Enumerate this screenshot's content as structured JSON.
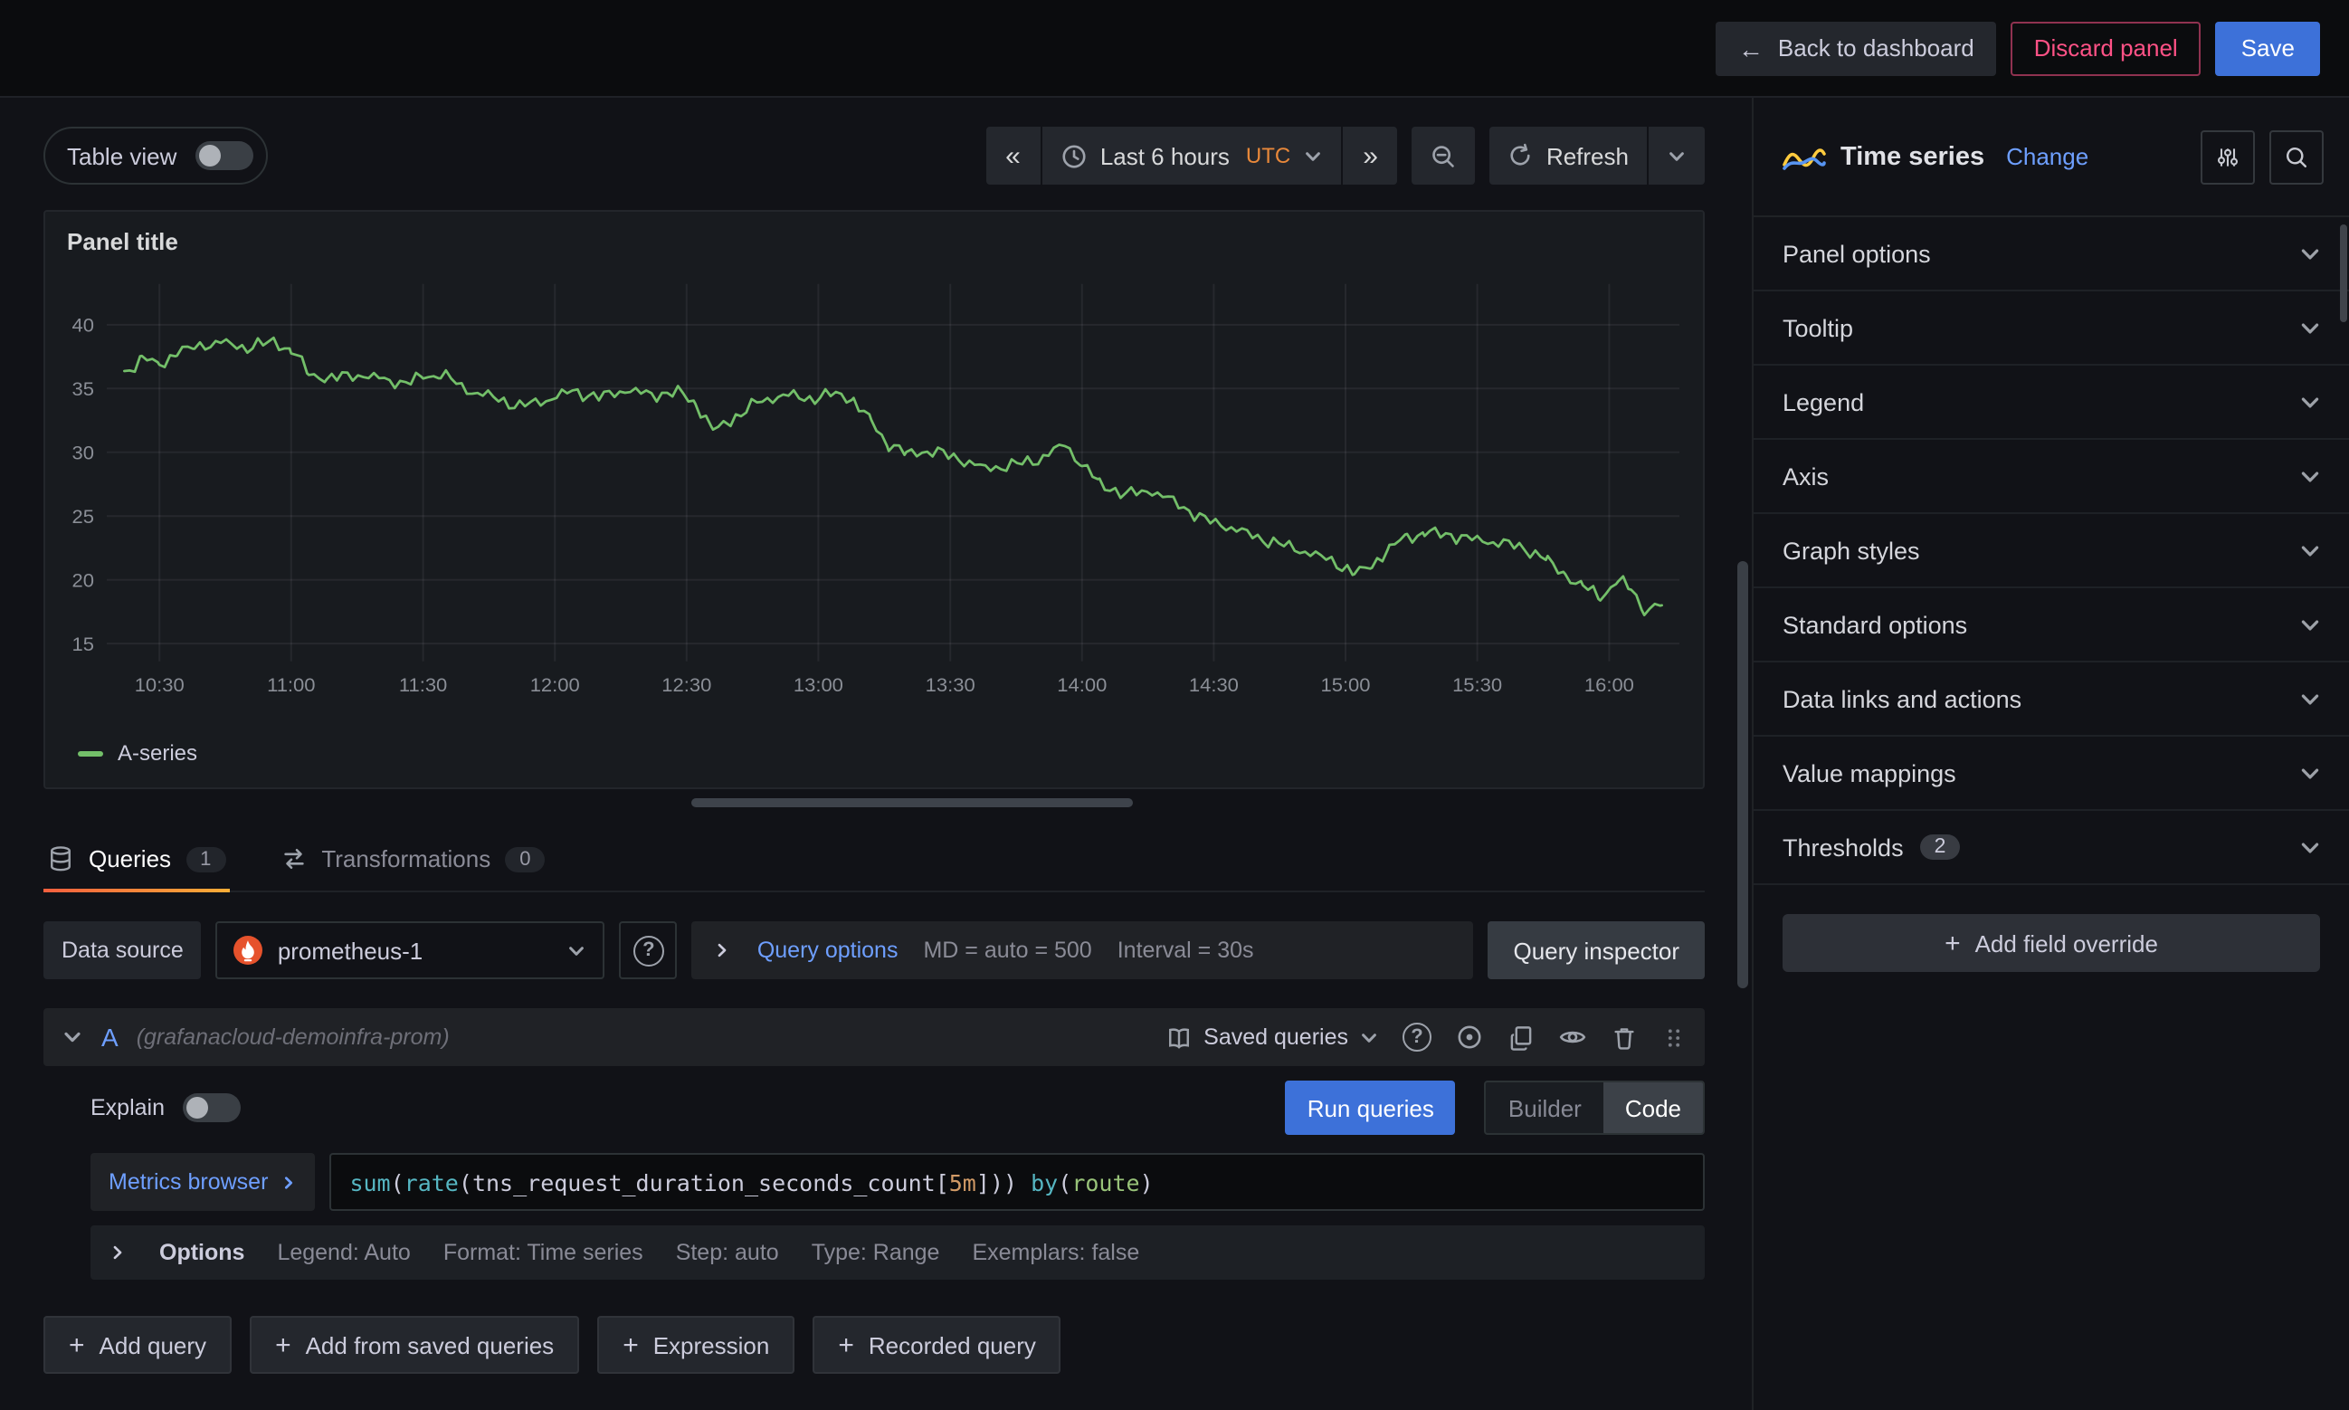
{
  "header": {
    "back_label": "Back to dashboard",
    "discard_label": "Discard panel",
    "save_label": "Save"
  },
  "toolbar": {
    "table_view_label": "Table view",
    "time_range_label": "Last 6 hours",
    "timezone": "UTC",
    "refresh_label": "Refresh"
  },
  "panel": {
    "title": "Panel title",
    "legend_label": "A-series"
  },
  "chart_data": {
    "type": "line",
    "title": "Panel title",
    "xlabel": "",
    "ylabel": "",
    "grid": true,
    "legend_position": "bottom-left",
    "timezone": "UTC",
    "x_ticks": [
      "10:30",
      "11:00",
      "11:30",
      "12:00",
      "12:30",
      "13:00",
      "13:30",
      "14:00",
      "14:30",
      "15:00",
      "15:30",
      "16:00"
    ],
    "y_ticks": [
      15,
      20,
      25,
      30,
      35,
      40
    ],
    "ylim": [
      15,
      40
    ],
    "x_range": [
      "10:18",
      "16:16"
    ],
    "series": [
      {
        "name": "A-series",
        "color": "#73BF69",
        "points": [
          [
            "10:22",
            36.2
          ],
          [
            "10:26",
            37.3
          ],
          [
            "10:30",
            36.9
          ],
          [
            "10:34",
            37.8
          ],
          [
            "10:38",
            38.3
          ],
          [
            "10:44",
            38.6
          ],
          [
            "10:50",
            38.2
          ],
          [
            "10:56",
            38.7
          ],
          [
            "11:00",
            38.0
          ],
          [
            "11:04",
            36.3
          ],
          [
            "11:08",
            35.7
          ],
          [
            "11:14",
            36.1
          ],
          [
            "11:20",
            35.8
          ],
          [
            "11:26",
            35.4
          ],
          [
            "11:30",
            35.9
          ],
          [
            "11:34",
            36.2
          ],
          [
            "11:40",
            34.9
          ],
          [
            "11:46",
            34.3
          ],
          [
            "11:52",
            33.6
          ],
          [
            "11:58",
            34.1
          ],
          [
            "12:04",
            34.8
          ],
          [
            "12:10",
            34.3
          ],
          [
            "12:16",
            34.9
          ],
          [
            "12:22",
            34.5
          ],
          [
            "12:28",
            34.7
          ],
          [
            "12:32",
            33.9
          ],
          [
            "12:36",
            31.7
          ],
          [
            "12:40",
            32.5
          ],
          [
            "12:46",
            33.9
          ],
          [
            "12:52",
            34.5
          ],
          [
            "12:58",
            34.2
          ],
          [
            "13:04",
            34.6
          ],
          [
            "13:08",
            34.1
          ],
          [
            "13:12",
            32.3
          ],
          [
            "13:16",
            30.7
          ],
          [
            "13:20",
            29.9
          ],
          [
            "13:26",
            30.1
          ],
          [
            "13:32",
            29.5
          ],
          [
            "13:38",
            28.7
          ],
          [
            "13:44",
            29.0
          ],
          [
            "13:50",
            29.4
          ],
          [
            "13:56",
            30.6
          ],
          [
            "14:00",
            29.1
          ],
          [
            "14:04",
            27.5
          ],
          [
            "14:10",
            26.7
          ],
          [
            "14:16",
            27.0
          ],
          [
            "14:22",
            25.9
          ],
          [
            "14:28",
            24.7
          ],
          [
            "14:34",
            24.1
          ],
          [
            "14:40",
            23.3
          ],
          [
            "14:46",
            22.7
          ],
          [
            "14:52",
            22.1
          ],
          [
            "14:58",
            21.3
          ],
          [
            "15:02",
            20.5
          ],
          [
            "15:06",
            21.1
          ],
          [
            "15:10",
            22.5
          ],
          [
            "15:14",
            23.3
          ],
          [
            "15:18",
            23.7
          ],
          [
            "15:24",
            23.5
          ],
          [
            "15:30",
            23.1
          ],
          [
            "15:36",
            22.9
          ],
          [
            "15:42",
            22.3
          ],
          [
            "15:46",
            21.5
          ],
          [
            "15:50",
            20.3
          ],
          [
            "15:54",
            19.5
          ],
          [
            "15:58",
            18.7
          ],
          [
            "16:02",
            19.9
          ],
          [
            "16:05",
            19.3
          ],
          [
            "16:08",
            17.7
          ],
          [
            "16:12",
            18.0
          ]
        ]
      }
    ]
  },
  "tabs": {
    "queries": {
      "label": "Queries",
      "count": "1"
    },
    "transformations": {
      "label": "Transformations",
      "count": "0"
    }
  },
  "query_editor": {
    "datasource_label": "Data source",
    "datasource_value": "prometheus-1",
    "query_options_label": "Query options",
    "md_text": "MD = auto = 500",
    "interval_text": "Interval = 30s",
    "query_inspector_label": "Query inspector",
    "row": {
      "ref_id": "A",
      "datasource_hint": "(grafanacloud-demoinfra-prom)",
      "saved_queries_label": "Saved queries",
      "explain_label": "Explain",
      "run_queries_label": "Run queries",
      "builder_label": "Builder",
      "code_label": "Code",
      "metrics_browser_label": "Metrics browser",
      "query_tokens": [
        {
          "text": "sum",
          "type": "function"
        },
        {
          "text": "(",
          "type": "punct"
        },
        {
          "text": "rate",
          "type": "function"
        },
        {
          "text": "(",
          "type": "punct"
        },
        {
          "text": "tns_request_duration_seconds_count",
          "type": "metric"
        },
        {
          "text": "[",
          "type": "punct"
        },
        {
          "text": "5m",
          "type": "duration"
        },
        {
          "text": "]",
          "type": "punct"
        },
        {
          "text": ")",
          "type": "punct"
        },
        {
          "text": ")",
          "type": "punct"
        },
        {
          "text": " ",
          "type": "plain"
        },
        {
          "text": "by",
          "type": "function"
        },
        {
          "text": "(",
          "type": "punct"
        },
        {
          "text": "route",
          "type": "label"
        },
        {
          "text": ")",
          "type": "punct"
        }
      ],
      "options_label": "Options",
      "options_items": [
        "Legend: Auto",
        "Format: Time series",
        "Step: auto",
        "Type: Range",
        "Exemplars: false"
      ]
    },
    "add_buttons": [
      "Add query",
      "Add from saved queries",
      "Expression",
      "Recorded query"
    ]
  },
  "options_pane": {
    "viz_name": "Time series",
    "change_label": "Change",
    "sections": [
      {
        "label": "Panel options"
      },
      {
        "label": "Tooltip"
      },
      {
        "label": "Legend"
      },
      {
        "label": "Axis"
      },
      {
        "label": "Graph styles"
      },
      {
        "label": "Standard options"
      },
      {
        "label": "Data links and actions"
      },
      {
        "label": "Value mappings"
      },
      {
        "label": "Thresholds",
        "badge": "2"
      }
    ],
    "add_override_label": "Add field override"
  },
  "icons": {
    "back_arrow": "←",
    "prev": "«",
    "next": "»",
    "plus": "+",
    "help": "?"
  },
  "colors": {
    "accent_blue": "#3D71D9",
    "link_blue": "#6E9FFF",
    "series_green": "#73BF69",
    "timezone_orange": "#E8883A",
    "danger_red": "#FF5286",
    "prometheus_orange": "#E6522C",
    "tab_underline_from": "#F55F3E",
    "tab_underline_to": "#FBAD37"
  }
}
